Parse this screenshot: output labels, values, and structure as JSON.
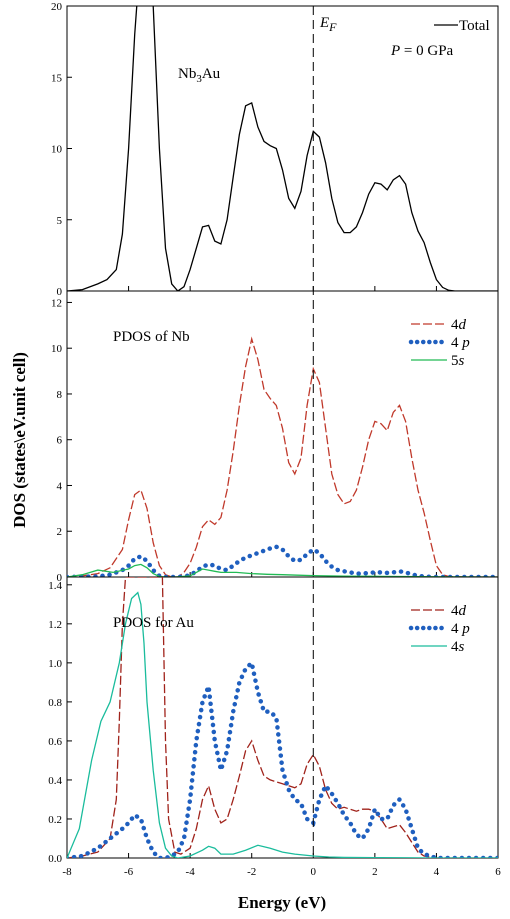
{
  "figure": {
    "xlabel": "Energy (eV)",
    "ylabel": "DOS (states\\eV.unit cell)",
    "fermi_label_main": "E",
    "fermi_label_sub": "F"
  },
  "chart_data": [
    {
      "type": "line",
      "panel": "top",
      "title_main": "Nb",
      "title_sub": "3",
      "title_rest": "Au",
      "pressure_main": "P",
      "pressure_rest": " = 0 GPa",
      "xlim": [
        -8,
        6
      ],
      "ylim": [
        0,
        20
      ],
      "xticks": [
        -8,
        -6,
        -4,
        -2,
        0,
        2,
        4,
        6
      ],
      "yticks": [
        "0",
        "5",
        "10",
        "15",
        "20"
      ],
      "yticks_val": [
        0,
        5,
        10,
        15,
        20
      ],
      "legend_position": "top-right",
      "series": [
        {
          "name": "Total",
          "color": "#000000",
          "style": "solid",
          "x": [
            -8,
            -7.5,
            -7.0,
            -6.7,
            -6.4,
            -6.2,
            -6.0,
            -5.8,
            -5.6,
            -5.4,
            -5.2,
            -5.0,
            -4.8,
            -4.6,
            -4.4,
            -4.2,
            -4.0,
            -3.8,
            -3.6,
            -3.4,
            -3.2,
            -3.0,
            -2.8,
            -2.6,
            -2.4,
            -2.2,
            -2.0,
            -1.8,
            -1.6,
            -1.4,
            -1.2,
            -1.0,
            -0.8,
            -0.6,
            -0.4,
            -0.2,
            0.0,
            0.2,
            0.4,
            0.6,
            0.8,
            1.0,
            1.2,
            1.4,
            1.6,
            1.8,
            2.0,
            2.2,
            2.4,
            2.6,
            2.8,
            3.0,
            3.2,
            3.4,
            3.6,
            3.8,
            4.0,
            4.2,
            4.4,
            4.6,
            5.0,
            6.0
          ],
          "y": [
            0,
            0.1,
            0.5,
            0.8,
            1.5,
            4,
            10,
            18,
            24,
            24,
            20,
            10,
            3,
            0.5,
            0,
            0.3,
            1.5,
            3,
            4.5,
            4.6,
            3.5,
            3.3,
            5,
            8,
            11,
            13,
            13.2,
            11.5,
            10.5,
            10.2,
            10,
            8.5,
            6.5,
            5.8,
            7,
            9.5,
            11.2,
            10.8,
            9,
            6.5,
            4.8,
            4.1,
            4.1,
            4.5,
            5.5,
            6.8,
            7.6,
            7.5,
            7.1,
            7.8,
            8.1,
            7.5,
            5.5,
            4.2,
            3.4,
            2.0,
            0.8,
            0.25,
            0.05,
            0,
            0,
            0
          ]
        }
      ]
    },
    {
      "type": "line",
      "panel": "middle",
      "title": "PDOS of Nb",
      "xlim": [
        -8,
        6
      ],
      "ylim": [
        0,
        12.5
      ],
      "yticks": [
        "0",
        "2",
        "4",
        "6",
        "8",
        "10",
        "12"
      ],
      "yticks_val": [
        0,
        2,
        4,
        6,
        8,
        10,
        12
      ],
      "legend_position": "top-right",
      "series": [
        {
          "name_main": "4",
          "name_italic": "d",
          "color": "#c0392b",
          "style": "dash",
          "x": [
            -8,
            -7.5,
            -7.0,
            -6.6,
            -6.2,
            -6.0,
            -5.8,
            -5.6,
            -5.4,
            -5.2,
            -5.0,
            -4.8,
            -4.6,
            -4.4,
            -4.2,
            -4.0,
            -3.8,
            -3.6,
            -3.4,
            -3.2,
            -3.0,
            -2.8,
            -2.6,
            -2.4,
            -2.2,
            -2.0,
            -1.8,
            -1.6,
            -1.4,
            -1.2,
            -1.0,
            -0.8,
            -0.6,
            -0.4,
            -0.2,
            0.0,
            0.2,
            0.4,
            0.6,
            0.8,
            1.0,
            1.2,
            1.4,
            1.6,
            1.8,
            2.0,
            2.2,
            2.4,
            2.6,
            2.8,
            3.0,
            3.2,
            3.4,
            3.6,
            3.8,
            4.0,
            4.2,
            4.4,
            5.0,
            6.0
          ],
          "y": [
            0,
            0.05,
            0.15,
            0.4,
            1.2,
            2.5,
            3.6,
            3.8,
            3.0,
            1.5,
            0.5,
            0.1,
            0,
            0,
            0.2,
            0.6,
            1.3,
            2.2,
            2.5,
            2.3,
            2.6,
            3.8,
            5.5,
            7.5,
            9.2,
            10.4,
            9.5,
            8.2,
            7.8,
            7.5,
            6.5,
            5.0,
            4.5,
            5.2,
            7.5,
            9.1,
            8.5,
            6.5,
            4.5,
            3.6,
            3.2,
            3.3,
            3.8,
            4.8,
            6.0,
            6.8,
            6.7,
            6.4,
            7.2,
            7.5,
            6.8,
            5.2,
            3.8,
            2.8,
            1.6,
            0.5,
            0.1,
            0.02,
            0,
            0
          ]
        },
        {
          "name_main": "4 ",
          "name_italic": "p",
          "color": "#1f5fbf",
          "style": "dotted",
          "x": [
            -8,
            -7.0,
            -6.6,
            -6.2,
            -6.0,
            -5.8,
            -5.6,
            -5.4,
            -5.2,
            -5.0,
            -4.8,
            -4.5,
            -4.2,
            -4.0,
            -3.8,
            -3.6,
            -3.4,
            -3.2,
            -3.0,
            -2.8,
            -2.6,
            -2.4,
            -2.2,
            -2.0,
            -1.8,
            -1.6,
            -1.4,
            -1.2,
            -1.0,
            -0.8,
            -0.6,
            -0.4,
            -0.2,
            0.0,
            0.2,
            0.4,
            0.6,
            0.8,
            1.0,
            1.2,
            1.4,
            1.6,
            1.8,
            2.0,
            2.2,
            2.4,
            2.6,
            2.8,
            3.0,
            3.2,
            3.4,
            3.6,
            3.8,
            4.0,
            4.5,
            6.0
          ],
          "y": [
            0,
            0.02,
            0.1,
            0.3,
            0.5,
            0.8,
            0.9,
            0.7,
            0.3,
            0.05,
            0,
            0,
            0.02,
            0.08,
            0.25,
            0.45,
            0.55,
            0.5,
            0.35,
            0.3,
            0.5,
            0.7,
            0.85,
            0.95,
            1.05,
            1.15,
            1.25,
            1.32,
            1.2,
            0.9,
            0.7,
            0.75,
            1.0,
            1.2,
            1.05,
            0.7,
            0.45,
            0.3,
            0.25,
            0.2,
            0.15,
            0.15,
            0.18,
            0.2,
            0.2,
            0.18,
            0.2,
            0.25,
            0.2,
            0.12,
            0.05,
            0.02,
            0.01,
            0,
            0,
            0
          ]
        },
        {
          "name_main": "5",
          "name_italic": "s",
          "color": "#22bb55",
          "style": "solid",
          "x": [
            -8,
            -7.5,
            -7.0,
            -6.5,
            -6.0,
            -5.8,
            -5.6,
            -5.4,
            -5.2,
            -5.0,
            -4.8,
            -4.5,
            -4.0,
            -3.8,
            -3.6,
            -3.4,
            -3.2,
            -3.0,
            -2.5,
            -2.0,
            -1.5,
            -1.0,
            -0.5,
            0.0,
            0.5,
            1.0,
            2.0,
            3.0,
            4.0,
            6.0
          ],
          "y": [
            0,
            0.1,
            0.3,
            0.2,
            0.35,
            0.5,
            0.55,
            0.4,
            0.15,
            0.02,
            0,
            0,
            0.05,
            0.2,
            0.35,
            0.3,
            0.25,
            0.2,
            0.2,
            0.15,
            0.12,
            0.1,
            0.08,
            0.06,
            0.05,
            0.04,
            0.03,
            0.02,
            0.01,
            0
          ]
        }
      ]
    },
    {
      "type": "line",
      "panel": "bottom",
      "title": "PDOS for Au",
      "xlim": [
        -8,
        6
      ],
      "ylim": [
        0,
        1.44
      ],
      "xticks": [
        -8,
        -6,
        -4,
        -2,
        0,
        2,
        4,
        6
      ],
      "yticks": [
        "0.0",
        "0.2",
        "0.4",
        "0.6",
        "0.8",
        "1.0",
        "1.2",
        "1.4"
      ],
      "yticks_val": [
        0,
        0.2,
        0.4,
        0.6,
        0.8,
        1.0,
        1.2,
        1.4
      ],
      "legend_position": "top-right",
      "series": [
        {
          "name_main": "4",
          "name_italic": "d",
          "color": "#a0231b",
          "style": "dash",
          "x": [
            -8,
            -7.5,
            -7.0,
            -6.6,
            -6.4,
            -6.3,
            -6.2,
            -6.1,
            -4.9,
            -4.8,
            -4.7,
            -4.5,
            -4.3,
            -4.0,
            -3.8,
            -3.6,
            -3.4,
            -3.2,
            -3.0,
            -2.8,
            -2.6,
            -2.4,
            -2.2,
            -2.0,
            -1.8,
            -1.6,
            -1.4,
            -1.2,
            -1.0,
            -0.8,
            -0.6,
            -0.4,
            -0.2,
            0.0,
            0.2,
            0.4,
            0.6,
            0.8,
            1.0,
            1.2,
            1.4,
            1.6,
            1.8,
            2.0,
            2.2,
            2.4,
            2.6,
            2.8,
            3.0,
            3.2,
            3.4,
            3.6,
            3.8,
            4.0,
            4.5,
            6.0
          ],
          "y": [
            0,
            0.01,
            0.03,
            0.1,
            0.3,
            0.7,
            1.2,
            1.44,
            1.44,
            0.6,
            0.2,
            0.03,
            0.02,
            0.05,
            0.15,
            0.3,
            0.37,
            0.25,
            0.18,
            0.2,
            0.3,
            0.42,
            0.55,
            0.6,
            0.5,
            0.42,
            0.4,
            0.39,
            0.38,
            0.37,
            0.36,
            0.38,
            0.48,
            0.53,
            0.47,
            0.35,
            0.28,
            0.25,
            0.26,
            0.25,
            0.24,
            0.25,
            0.25,
            0.24,
            0.2,
            0.15,
            0.16,
            0.17,
            0.13,
            0.08,
            0.03,
            0.01,
            0.005,
            0,
            0,
            0
          ]
        },
        {
          "name_main": "4 ",
          "name_italic": "p",
          "color": "#1f5fbf",
          "style": "dotted",
          "x": [
            -8,
            -7.5,
            -7.0,
            -6.6,
            -6.2,
            -6.0,
            -5.8,
            -5.6,
            -5.4,
            -5.2,
            -5.0,
            -4.8,
            -4.6,
            -4.4,
            -4.2,
            -4.0,
            -3.8,
            -3.6,
            -3.4,
            -3.2,
            -3.0,
            -2.8,
            -2.6,
            -2.4,
            -2.2,
            -2.0,
            -1.8,
            -1.6,
            -1.4,
            -1.2,
            -1.0,
            -0.8,
            -0.6,
            -0.4,
            -0.2,
            0.0,
            0.2,
            0.4,
            0.6,
            0.8,
            1.0,
            1.2,
            1.4,
            1.6,
            1.8,
            2.0,
            2.2,
            2.4,
            2.6,
            2.8,
            3.0,
            3.2,
            3.4,
            3.6,
            3.8,
            4.0,
            4.5,
            6.0
          ],
          "y": [
            0,
            0.01,
            0.05,
            0.1,
            0.15,
            0.18,
            0.22,
            0.2,
            0.1,
            0.03,
            0,
            0,
            0.01,
            0.03,
            0.1,
            0.3,
            0.6,
            0.8,
            0.88,
            0.6,
            0.45,
            0.55,
            0.75,
            0.9,
            0.97,
            1.0,
            0.85,
            0.75,
            0.75,
            0.72,
            0.45,
            0.35,
            0.3,
            0.28,
            0.2,
            0.18,
            0.3,
            0.37,
            0.33,
            0.28,
            0.22,
            0.18,
            0.12,
            0.1,
            0.15,
            0.25,
            0.2,
            0.2,
            0.27,
            0.3,
            0.25,
            0.15,
            0.05,
            0.02,
            0.01,
            0,
            0,
            0
          ]
        },
        {
          "name_main": "4",
          "name_italic": "s",
          "color": "#1abc9c",
          "style": "solid",
          "x": [
            -8,
            -7.6,
            -7.2,
            -6.9,
            -6.6,
            -6.3,
            -6.1,
            -5.9,
            -5.7,
            -5.6,
            -5.5,
            -5.4,
            -5.2,
            -5.0,
            -4.8,
            -4.6,
            -4.4,
            -4.0,
            -3.6,
            -3.4,
            -3.2,
            -3.0,
            -2.6,
            -2.2,
            -1.8,
            -1.4,
            -1.0,
            -0.6,
            0.0,
            0.5,
            1.0,
            2.0,
            3.0,
            4.0,
            6.0
          ],
          "y": [
            0,
            0.15,
            0.5,
            0.7,
            0.8,
            1.0,
            1.2,
            1.33,
            1.36,
            1.3,
            1.1,
            0.8,
            0.45,
            0.18,
            0.05,
            0.01,
            0,
            0.01,
            0.04,
            0.06,
            0.05,
            0.02,
            0.02,
            0.04,
            0.065,
            0.05,
            0.03,
            0.02,
            0.01,
            0.005,
            0.003,
            0.002,
            0.001,
            0,
            0
          ]
        }
      ]
    }
  ]
}
